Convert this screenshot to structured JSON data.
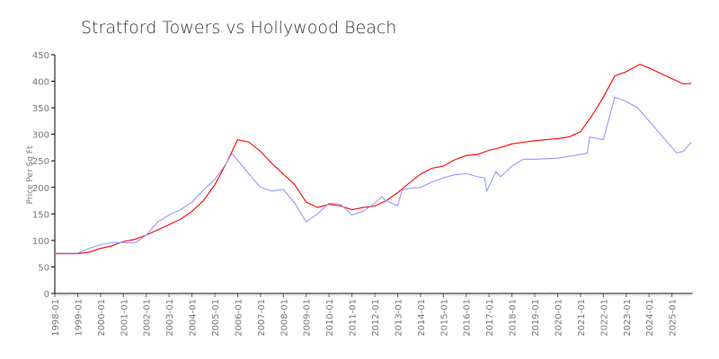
{
  "chart_data": {
    "type": "line",
    "title": "Stratford Towers vs Hollywood Beach",
    "xlabel": "",
    "ylabel": "Price Per Sq Ft",
    "ylim": [
      0,
      450
    ],
    "xlim": [
      1998.0,
      2025.9
    ],
    "y_ticks": [
      "0",
      "50",
      "100",
      "150",
      "200",
      "250",
      "300",
      "350",
      "400",
      "450"
    ],
    "x_ticks": [
      "1998-01",
      "1999-01",
      "2000-01",
      "2001-01",
      "2002-01",
      "2003-01",
      "2004-01",
      "2005-01",
      "2006-01",
      "2007-01",
      "2008-01",
      "2009-01",
      "2010-01",
      "2011-01",
      "2012-01",
      "2013-01",
      "2014-01",
      "2015-01",
      "2016-01",
      "2017-01",
      "2018-01",
      "2019-01",
      "2020-01",
      "2021-01",
      "2022-01",
      "2023-01",
      "2024-01",
      "2025-01"
    ],
    "grid": false,
    "series": [
      {
        "name": "Stratford Towers",
        "color": "#ff0000",
        "x": [
          1998.0,
          1999.0,
          1999.5,
          2000.0,
          2000.5,
          2001.0,
          2001.5,
          2002.0,
          2002.5,
          2003.0,
          2003.5,
          2004.0,
          2004.5,
          2005.0,
          2005.5,
          2006.0,
          2006.5,
          2007.0,
          2007.5,
          2008.0,
          2008.5,
          2009.0,
          2009.5,
          2010.0,
          2010.5,
          2011.0,
          2011.5,
          2012.0,
          2012.5,
          2013.0,
          2013.5,
          2014.0,
          2014.5,
          2015.0,
          2015.5,
          2016.0,
          2016.5,
          2017.0,
          2017.5,
          2018.0,
          2018.5,
          2019.0,
          2019.5,
          2020.0,
          2020.5,
          2021.0,
          2021.5,
          2022.0,
          2022.5,
          2023.0,
          2023.6,
          2024.0,
          2024.5,
          2025.0,
          2025.5,
          2025.85
        ],
        "values": [
          75,
          75,
          78,
          85,
          90,
          98,
          102,
          110,
          120,
          130,
          140,
          155,
          175,
          205,
          245,
          290,
          285,
          268,
          245,
          225,
          205,
          172,
          162,
          168,
          165,
          158,
          162,
          165,
          175,
          190,
          208,
          225,
          236,
          240,
          252,
          260,
          262,
          270,
          275,
          282,
          285,
          288,
          290,
          292,
          295,
          305,
          335,
          370,
          410,
          418,
          432,
          425,
          415,
          405,
          395,
          396
        ]
      },
      {
        "name": "Hollywood Beach",
        "color": "#9999ff",
        "x": [
          1998.0,
          1999.0,
          1999.5,
          2000.0,
          2000.5,
          2001.0,
          2001.5,
          2002.0,
          2002.5,
          2003.0,
          2003.5,
          2004.0,
          2004.5,
          2005.0,
          2005.5,
          2005.75,
          2006.5,
          2007.0,
          2007.5,
          2008.0,
          2008.5,
          2009.0,
          2009.5,
          2010.0,
          2010.5,
          2011.0,
          2011.5,
          2012.0,
          2012.3,
          2012.5,
          2013.0,
          2013.2,
          2013.5,
          2014.0,
          2014.5,
          2015.0,
          2015.5,
          2016.0,
          2016.5,
          2016.8,
          2016.9,
          2017.3,
          2017.5,
          2018.0,
          2018.5,
          2019.0,
          2020.0,
          2021.0,
          2021.3,
          2021.4,
          2022.0,
          2022.5,
          2023.0,
          2023.5,
          2024.0,
          2024.5,
          2025.0,
          2025.2,
          2025.5,
          2025.85
        ],
        "values": [
          76,
          76,
          85,
          92,
          96,
          96,
          95,
          110,
          135,
          148,
          158,
          172,
          195,
          215,
          245,
          264,
          225,
          200,
          193,
          196,
          170,
          135,
          150,
          170,
          168,
          148,
          155,
          170,
          182,
          175,
          165,
          195,
          198,
          200,
          210,
          218,
          224,
          226,
          220,
          218,
          193,
          230,
          220,
          240,
          253,
          253,
          255,
          262,
          265,
          295,
          290,
          370,
          362,
          350,
          325,
          300,
          275,
          265,
          268,
          285
        ]
      }
    ]
  }
}
